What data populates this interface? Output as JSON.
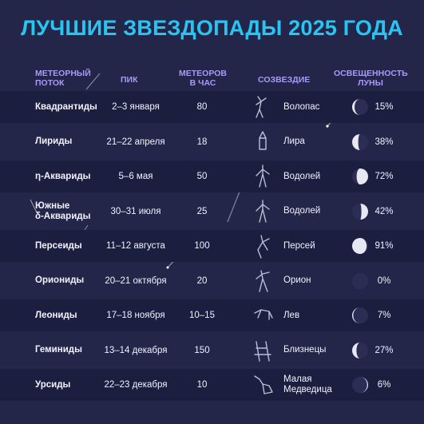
{
  "title": "ЛУЧШИЕ ЗВЕЗДОПАДЫ 2025 ГОДА",
  "headers": {
    "stream": [
      "МЕТЕОРНЫЙ",
      "ПОТОК"
    ],
    "peak": "ПИК",
    "rate": [
      "МЕТЕОРОВ",
      "В ЧАС"
    ],
    "constellation": "СОЗВЕЗДИЕ",
    "moon": [
      "ОСВЕЩЕННОСТЬ",
      "ЛУНЫ"
    ]
  },
  "colors": {
    "title": "#27c6f2",
    "header": "#a99af6",
    "background": "#232549",
    "row_dark": "#1c1e3f"
  },
  "rows": [
    {
      "name": [
        "Квадрантиды"
      ],
      "peak": "2–3 января",
      "rate": "80",
      "constellation": [
        "Волопас"
      ],
      "icon": "bootes-constellation-icon",
      "moon": "15%",
      "moon_fraction": 0.15,
      "moon_waxing": false
    },
    {
      "name": [
        "Лириды"
      ],
      "peak": "21–22 апреля",
      "rate": "18",
      "constellation": [
        "Лира"
      ],
      "icon": "lyra-constellation-icon",
      "moon": "38%",
      "moon_fraction": 0.38,
      "moon_waxing": false
    },
    {
      "name": [
        "η-Аквариды"
      ],
      "peak": "5–6 мая",
      "rate": "50",
      "constellation": [
        "Водолей"
      ],
      "icon": "aquarius-constellation-icon",
      "moon": "72%",
      "moon_fraction": 0.72,
      "moon_waxing": true
    },
    {
      "name": [
        "Южные",
        "δ-Аквариды"
      ],
      "peak": "30–31 июля",
      "rate": "25",
      "constellation": [
        "Водолей"
      ],
      "icon": "aquarius-constellation-icon",
      "moon": "42%",
      "moon_fraction": 0.42,
      "moon_waxing": true
    },
    {
      "name": [
        "Персеиды"
      ],
      "peak": "11–12 августа",
      "rate": "100",
      "constellation": [
        "Персей"
      ],
      "icon": "perseus-constellation-icon",
      "moon": "91%",
      "moon_fraction": 0.91,
      "moon_waxing": false
    },
    {
      "name": [
        "Ориониды"
      ],
      "peak": "20–21 октября",
      "rate": "20",
      "constellation": [
        "Орион"
      ],
      "icon": "orion-constellation-icon",
      "moon": "0%",
      "moon_fraction": 0.0,
      "moon_waxing": true
    },
    {
      "name": [
        "Леониды"
      ],
      "peak": "17–18 ноября",
      "rate": "10–15",
      "constellation": [
        "Лев"
      ],
      "icon": "leo-constellation-icon",
      "moon": "7%",
      "moon_fraction": 0.07,
      "moon_waxing": false
    },
    {
      "name": [
        "Геминиды"
      ],
      "peak": "13–14 декабря",
      "rate": "150",
      "constellation": [
        "Близнецы"
      ],
      "icon": "gemini-constellation-icon",
      "moon": "27%",
      "moon_fraction": 0.27,
      "moon_waxing": false
    },
    {
      "name": [
        "Урсиды"
      ],
      "peak": "22–23 декабря",
      "rate": "10",
      "constellation": [
        "Малая",
        "Медведица"
      ],
      "icon": "ursa-minor-constellation-icon",
      "moon": "6%",
      "moon_fraction": 0.06,
      "moon_waxing": true
    }
  ]
}
